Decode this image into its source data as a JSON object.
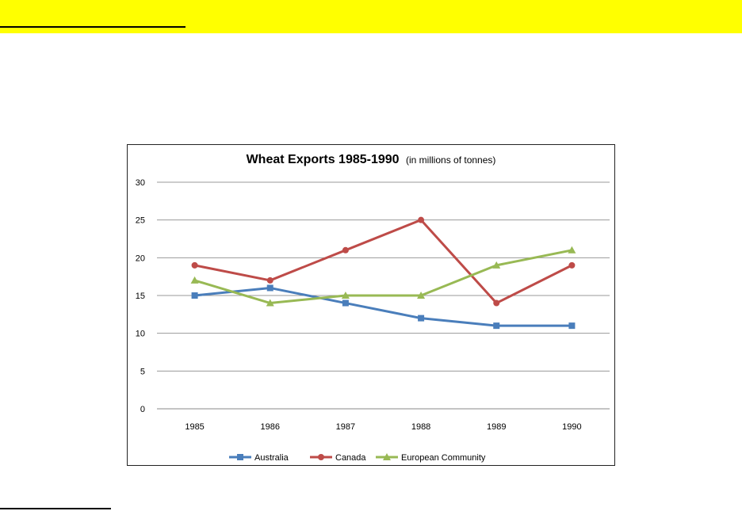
{
  "page": {
    "banner_color": "#ffff00"
  },
  "chart_data": {
    "type": "line",
    "title": "Wheat Exports 1985-1990",
    "subtitle": "(in millions of tonnes)",
    "xlabel": "",
    "ylabel": "",
    "categories": [
      "1985",
      "1986",
      "1987",
      "1988",
      "1989",
      "1990"
    ],
    "ylim": [
      0,
      30
    ],
    "yticks": [
      0,
      5,
      10,
      15,
      20,
      25,
      30
    ],
    "grid": true,
    "legend_position": "bottom",
    "series": [
      {
        "name": "Australia",
        "color": "#4a7ebb",
        "marker": "square",
        "values": [
          15,
          16,
          14,
          12,
          11,
          11
        ]
      },
      {
        "name": "Canada",
        "color": "#be4b48",
        "marker": "circle",
        "values": [
          19,
          17,
          21,
          25,
          14,
          19
        ]
      },
      {
        "name": "European Community",
        "color": "#98b954",
        "marker": "triangle",
        "values": [
          17,
          14,
          15,
          15,
          19,
          21
        ]
      }
    ]
  }
}
